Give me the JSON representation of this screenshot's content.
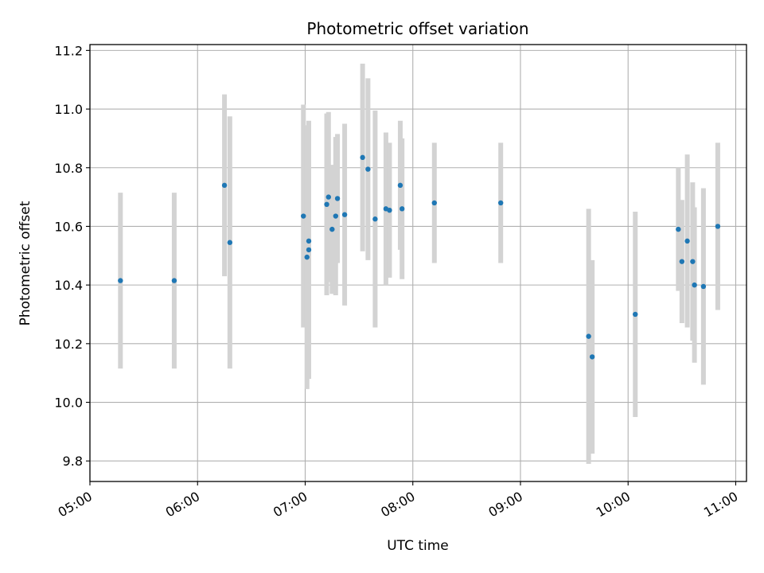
{
  "chart_data": {
    "type": "scatter",
    "title": "Photometric offset variation",
    "xlabel": "UTC time",
    "ylabel": "Photometric offset",
    "x_is_time": true,
    "xlim": [
      "05:00",
      "11:06"
    ],
    "ylim": [
      9.73,
      11.22
    ],
    "x_ticks": [
      "05:00",
      "06:00",
      "07:00",
      "08:00",
      "09:00",
      "10:00",
      "11:00"
    ],
    "y_ticks": [
      "9.8",
      "10.0",
      "10.2",
      "10.4",
      "10.6",
      "10.8",
      "11.0",
      "11.2"
    ],
    "grid": true,
    "marker_color": "#1f77b4",
    "errorbar_color": "#d3d3d3",
    "points": [
      {
        "x": "05:17",
        "y": 10.415,
        "err": 0.3
      },
      {
        "x": "05:47",
        "y": 10.415,
        "err": 0.3
      },
      {
        "x": "06:15",
        "y": 10.74,
        "err": 0.31
      },
      {
        "x": "06:18",
        "y": 10.545,
        "err": 0.43
      },
      {
        "x": "06:59",
        "y": 10.635,
        "err": 0.38
      },
      {
        "x": "07:01",
        "y": 10.495,
        "err": 0.45
      },
      {
        "x": "07:02",
        "y": 10.52,
        "err": 0.44
      },
      {
        "x": "07:02",
        "y": 10.55,
        "err": 0.39
      },
      {
        "x": "07:12",
        "y": 10.675,
        "err": 0.31
      },
      {
        "x": "07:13",
        "y": 10.7,
        "err": 0.29
      },
      {
        "x": "07:15",
        "y": 10.59,
        "err": 0.22
      },
      {
        "x": "07:17",
        "y": 10.635,
        "err": 0.27
      },
      {
        "x": "07:18",
        "y": 10.695,
        "err": 0.22
      },
      {
        "x": "07:22",
        "y": 10.64,
        "err": 0.31
      },
      {
        "x": "07:32",
        "y": 10.835,
        "err": 0.32
      },
      {
        "x": "07:35",
        "y": 10.795,
        "err": 0.31
      },
      {
        "x": "07:39",
        "y": 10.625,
        "err": 0.37
      },
      {
        "x": "07:45",
        "y": 10.66,
        "err": 0.26
      },
      {
        "x": "07:47",
        "y": 10.655,
        "err": 0.23
      },
      {
        "x": "07:53",
        "y": 10.74,
        "err": 0.22
      },
      {
        "x": "07:54",
        "y": 10.66,
        "err": 0.24
      },
      {
        "x": "08:12",
        "y": 10.68,
        "err": 0.205
      },
      {
        "x": "08:49",
        "y": 10.68,
        "err": 0.205
      },
      {
        "x": "09:38",
        "y": 10.225,
        "err": 0.435
      },
      {
        "x": "09:40",
        "y": 10.155,
        "err": 0.33
      },
      {
        "x": "10:04",
        "y": 10.3,
        "err": 0.35
      },
      {
        "x": "10:28",
        "y": 10.59,
        "err": 0.21
      },
      {
        "x": "10:30",
        "y": 10.48,
        "err": 0.21
      },
      {
        "x": "10:33",
        "y": 10.55,
        "err": 0.295
      },
      {
        "x": "10:36",
        "y": 10.48,
        "err": 0.27
      },
      {
        "x": "10:37",
        "y": 10.4,
        "err": 0.265
      },
      {
        "x": "10:42",
        "y": 10.395,
        "err": 0.335
      },
      {
        "x": "10:50",
        "y": 10.6,
        "err": 0.285
      }
    ]
  }
}
